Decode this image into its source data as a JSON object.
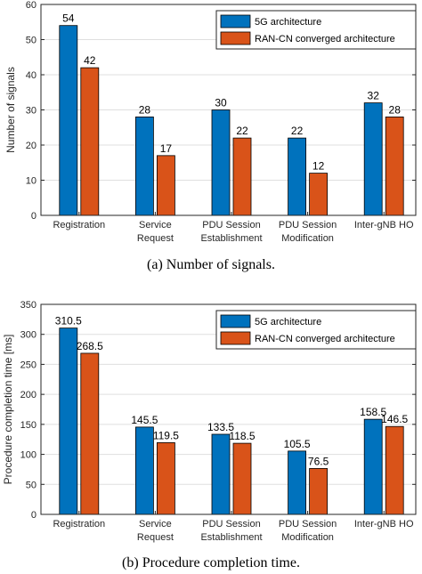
{
  "colors": {
    "series_a": "#0072BD",
    "series_b": "#D95319",
    "grid": "#dfdfdf",
    "axis": "#262626"
  },
  "chart_data": [
    {
      "type": "bar",
      "caption": "(a) Number of signals.",
      "ylabel": "Number of signals",
      "xlabel": "",
      "ylim": [
        0,
        60
      ],
      "yticks": [
        0,
        10,
        20,
        30,
        40,
        50,
        60
      ],
      "grid": true,
      "legend_position": "top-right",
      "categories": [
        [
          "Registration"
        ],
        [
          "Service",
          "Request"
        ],
        [
          "PDU Session",
          "Establishment"
        ],
        [
          "PDU Session",
          "Modification"
        ],
        [
          "Inter-gNB HO"
        ]
      ],
      "series": [
        {
          "name": "5G architecture",
          "values": [
            54,
            28,
            30,
            22,
            32
          ],
          "labels": [
            "54",
            "28",
            "30",
            "22",
            "32"
          ]
        },
        {
          "name": "RAN-CN converged architecture",
          "values": [
            42,
            17,
            22,
            12,
            28
          ],
          "labels": [
            "42",
            "17",
            "22",
            "12",
            "28"
          ]
        }
      ]
    },
    {
      "type": "bar",
      "caption": "(b) Procedure completion time.",
      "ylabel": "Procedure completion time [ms]",
      "xlabel": "",
      "ylim": [
        0,
        350
      ],
      "yticks": [
        0,
        50,
        100,
        150,
        200,
        250,
        300,
        350
      ],
      "grid": true,
      "legend_position": "top-right",
      "categories": [
        [
          "Registration"
        ],
        [
          "Service",
          "Request"
        ],
        [
          "PDU Session",
          "Establishment"
        ],
        [
          "PDU Session",
          "Modification"
        ],
        [
          "Inter-gNB HO"
        ]
      ],
      "series": [
        {
          "name": "5G architecture",
          "values": [
            310.5,
            145.5,
            133.5,
            105.5,
            158.5
          ],
          "labels": [
            "310.5",
            "145.5",
            "133.5",
            "105.5",
            "158.5"
          ]
        },
        {
          "name": "RAN-CN converged architecture",
          "values": [
            268.5,
            119.5,
            118.5,
            76.5,
            146.5
          ],
          "labels": [
            "268.5",
            "119.5",
            "118.5",
            "76.5",
            "146.5"
          ]
        }
      ]
    }
  ]
}
